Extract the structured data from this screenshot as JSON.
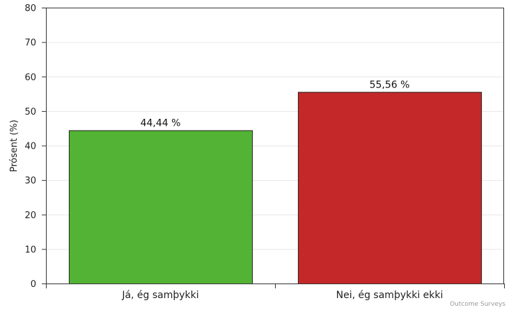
{
  "chart_data": {
    "type": "bar",
    "title": "",
    "xlabel": "",
    "ylabel": "Prósent (%)",
    "ylim": [
      0,
      80
    ],
    "yticks": [
      0,
      10,
      20,
      30,
      40,
      50,
      60,
      70,
      80
    ],
    "grid": true,
    "categories": [
      "Já, ég samþykki",
      "Nei, ég samþykki ekki"
    ],
    "values": [
      44.44,
      55.56
    ],
    "value_labels": [
      "44,44 %",
      "55,56 %"
    ],
    "colors": [
      "#52b334",
      "#c42828"
    ]
  },
  "credit": "Outcome Surveys"
}
